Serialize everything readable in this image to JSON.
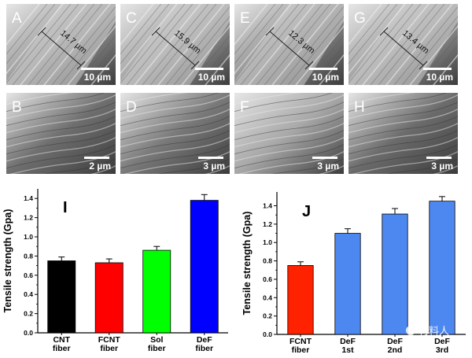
{
  "sem_panels": [
    {
      "letter": "A",
      "scale": "10 µm",
      "measure": "14.7 µm",
      "tone": "#9a9a9a",
      "row": "top"
    },
    {
      "letter": "C",
      "scale": "10 µm",
      "measure": "15.9 µm",
      "tone": "#a3a3a3",
      "row": "top"
    },
    {
      "letter": "E",
      "scale": "10 µm",
      "measure": "12.3 µm",
      "tone": "#8f8f8f",
      "row": "top"
    },
    {
      "letter": "G",
      "scale": "10 µm",
      "measure": "13.4 µm",
      "tone": "#a0a0a0",
      "row": "top"
    },
    {
      "letter": "B",
      "scale": "2 µm",
      "measure": "",
      "tone": "#6f6f6f",
      "row": "bottom"
    },
    {
      "letter": "D",
      "scale": "3 µm",
      "measure": "",
      "tone": "#7a7a7a",
      "row": "bottom"
    },
    {
      "letter": "F",
      "scale": "3 µm",
      "measure": "",
      "tone": "#a8a8a8",
      "row": "bottom"
    },
    {
      "letter": "H",
      "scale": "3 µm",
      "measure": "",
      "tone": "#6c6c6c",
      "row": "bottom"
    }
  ],
  "chart_data": [
    {
      "type": "bar",
      "panel": "I",
      "ylabel": "Tensile strength (Gpa)",
      "ylim": [
        0.0,
        1.5
      ],
      "yticks": [
        "0.0",
        "0.2",
        "0.4",
        "0.6",
        "0.8",
        "1.0",
        "1.2",
        "1.4"
      ],
      "categories": [
        [
          "CNT",
          "fiber"
        ],
        [
          "FCNT",
          "fiber"
        ],
        [
          "Sol",
          "fiber"
        ],
        [
          "DeF",
          "fiber"
        ]
      ],
      "values": [
        0.75,
        0.73,
        0.86,
        1.38
      ],
      "errors": [
        0.04,
        0.04,
        0.04,
        0.06
      ],
      "colors": [
        "#000000",
        "#ff0000",
        "#00ff00",
        "#0000ff"
      ],
      "grid": false
    },
    {
      "type": "bar",
      "panel": "J",
      "ylabel": "Tensile strength (Gpa)",
      "ylim": [
        0.0,
        1.55
      ],
      "yticks": [
        "0.0",
        "0.2",
        "0.4",
        "0.6",
        "0.8",
        "1.0",
        "1.2",
        "1.4"
      ],
      "categories": [
        [
          "FCNT",
          "fiber"
        ],
        [
          "DeF",
          "1st"
        ],
        [
          "DeF",
          "2nd"
        ],
        [
          "DeF",
          "3rd"
        ]
      ],
      "values": [
        0.75,
        1.1,
        1.31,
        1.45
      ],
      "errors": [
        0.04,
        0.05,
        0.06,
        0.05
      ],
      "colors": [
        "#ff2200",
        "#4d88f0",
        "#4d88f0",
        "#4d88f0"
      ],
      "grid": false
    }
  ],
  "watermark": "材料人"
}
